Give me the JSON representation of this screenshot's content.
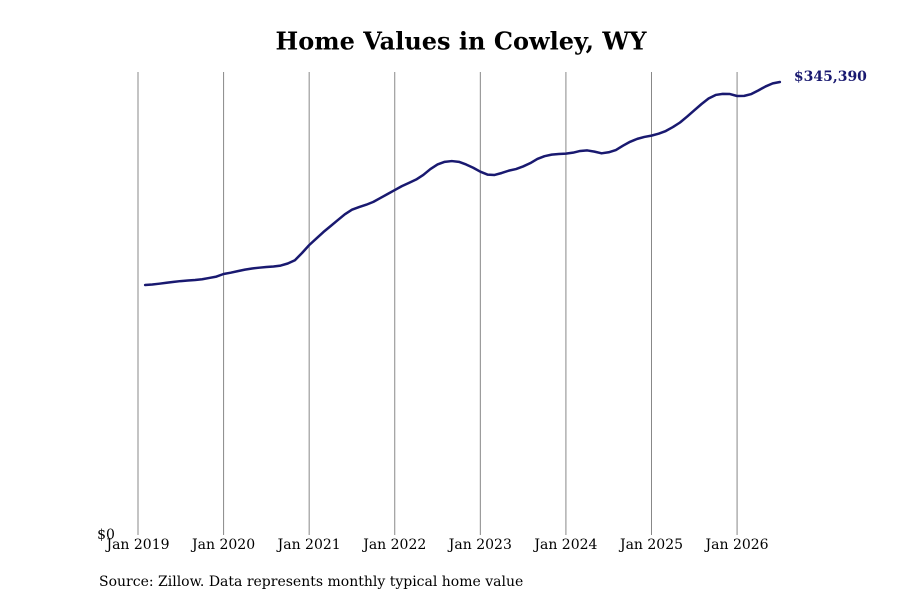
{
  "chart_data": {
    "type": "line",
    "title": "Home Values in Cowley, WY",
    "source": "Source: Zillow. Data represents monthly typical home value",
    "x": [
      "2019-02",
      "2019-03",
      "2019-04",
      "2019-05",
      "2019-06",
      "2019-07",
      "2019-08",
      "2019-09",
      "2019-10",
      "2019-11",
      "2019-12",
      "2020-01",
      "2020-02",
      "2020-03",
      "2020-04",
      "2020-05",
      "2020-06",
      "2020-07",
      "2020-08",
      "2020-09",
      "2020-10",
      "2020-11",
      "2020-12",
      "2021-01",
      "2021-02",
      "2021-03",
      "2021-04",
      "2021-05",
      "2021-06",
      "2021-07",
      "2021-08",
      "2021-09",
      "2021-10",
      "2021-11",
      "2021-12",
      "2022-01",
      "2022-02",
      "2022-03",
      "2022-04",
      "2022-05",
      "2022-06",
      "2022-07",
      "2022-08",
      "2022-09",
      "2022-10",
      "2022-11",
      "2022-12",
      "2023-01",
      "2023-02",
      "2023-03",
      "2023-04",
      "2023-05",
      "2023-06",
      "2023-07",
      "2023-08",
      "2023-09",
      "2023-10",
      "2023-11",
      "2023-12",
      "2024-01",
      "2024-02",
      "2024-03",
      "2024-04",
      "2024-05",
      "2024-06",
      "2024-07",
      "2024-08",
      "2024-09",
      "2024-10",
      "2024-11",
      "2024-12",
      "2025-01",
      "2025-02",
      "2025-03",
      "2025-04",
      "2025-05",
      "2025-06",
      "2025-07",
      "2025-08",
      "2025-09",
      "2025-10",
      "2025-11",
      "2025-12",
      "2026-01",
      "2026-02",
      "2026-03",
      "2026-04",
      "2026-05",
      "2026-06",
      "2026-07"
    ],
    "series": [
      {
        "name": "Home value",
        "color": "#191970",
        "values": [
          190600,
          191000,
          191600,
          192300,
          193000,
          193600,
          194000,
          194400,
          195000,
          196000,
          197000,
          199000,
          200000,
          201200,
          202300,
          203200,
          203800,
          204300,
          204700,
          205400,
          207000,
          209500,
          215000,
          221000,
          226000,
          231000,
          235500,
          240000,
          244500,
          248000,
          250000,
          251800,
          254000,
          257000,
          260000,
          263000,
          266000,
          268500,
          271000,
          274500,
          279000,
          282500,
          284500,
          285100,
          284500,
          282500,
          280000,
          277000,
          274800,
          274500,
          276000,
          277800,
          279000,
          281000,
          283500,
          286700,
          288800,
          290000,
          290500,
          290800,
          291500,
          292800,
          293200,
          292300,
          291000,
          291800,
          293500,
          296800,
          299800,
          302000,
          303500,
          304500,
          306000,
          308000,
          311000,
          314500,
          319000,
          323800,
          328500,
          332800,
          335500,
          336300,
          336200,
          334700,
          334800,
          336200,
          339000,
          342000,
          344300,
          345390
        ]
      }
    ],
    "end_label": "$345,390",
    "xlim": [
      "2019-01",
      "2026-08"
    ],
    "xticks": [
      {
        "value": "2019-01",
        "label": "Jan 2019"
      },
      {
        "value": "2020-01",
        "label": "Jan 2020"
      },
      {
        "value": "2021-01",
        "label": "Jan 2021"
      },
      {
        "value": "2022-01",
        "label": "Jan 2022"
      },
      {
        "value": "2023-01",
        "label": "Jan 2023"
      },
      {
        "value": "2024-01",
        "label": "Jan 2024"
      },
      {
        "value": "2025-01",
        "label": "Jan 2025"
      },
      {
        "value": "2026-01",
        "label": "Jan 2026"
      }
    ],
    "ylim": [
      0,
      353000
    ],
    "yticks": [
      {
        "value": 0,
        "label": "$0"
      }
    ],
    "grid": true
  }
}
